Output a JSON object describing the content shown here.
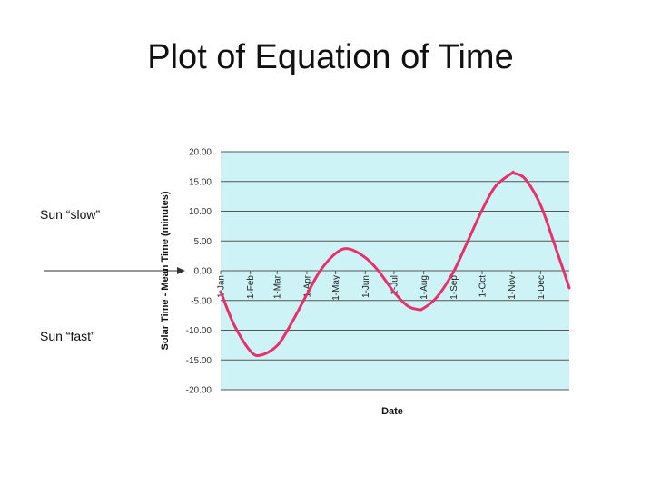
{
  "slide": {
    "title": "Plot of Equation of Time",
    "label_slow": "Sun “slow”",
    "label_fast": "Sun “fast”"
  },
  "colors": {
    "plot_background": "#cdf3f6",
    "curve": "#e8306a",
    "gridline": "#555555"
  },
  "chart_data": {
    "type": "line",
    "title": "",
    "xlabel": "Date",
    "ylabel": "Solar Time - Mean Time (minutes)",
    "ylim": [
      -20,
      20
    ],
    "y_ticks": [
      "20.00",
      "15.00",
      "10.00",
      "5.00",
      "0.00",
      "-5.00",
      "-10.00",
      "-15.00",
      "-20.00"
    ],
    "x_ticks": [
      "1-Jan",
      "1-Feb",
      "1-Mar",
      "1-Apr",
      "1-May",
      "1-Jun",
      "1-Jul",
      "1-Aug",
      "1-Sep",
      "1-Oct",
      "1-Nov",
      "1-Dec"
    ],
    "xlim": [
      "1-Jan",
      "31-Dec"
    ],
    "grid": true,
    "series": [
      {
        "x": [
          "1-Jan",
          "15-Jan",
          "1-Feb",
          "12-Feb",
          "1-Mar",
          "15-Mar",
          "1-Apr",
          "15-Apr",
          "1-May",
          "14-May",
          "1-Jun",
          "15-Jun",
          "1-Jul",
          "15-Jul",
          "26-Jul",
          "1-Aug",
          "15-Aug",
          "1-Sep",
          "15-Sep",
          "1-Oct",
          "15-Oct",
          "1-Nov",
          "3-Nov",
          "15-Nov",
          "1-Dec",
          "15-Dec",
          "25-Dec",
          "31-Dec"
        ],
        "y": [
          -3.5,
          -9.1,
          -13.5,
          -14.2,
          -12.6,
          -9.1,
          -4.0,
          0.0,
          2.9,
          3.7,
          2.2,
          -0.1,
          -3.6,
          -5.9,
          -6.5,
          -6.3,
          -4.4,
          -0.2,
          4.6,
          10.2,
          14.2,
          16.4,
          16.4,
          15.4,
          11.0,
          4.7,
          0.0,
          -2.9
        ]
      }
    ]
  }
}
